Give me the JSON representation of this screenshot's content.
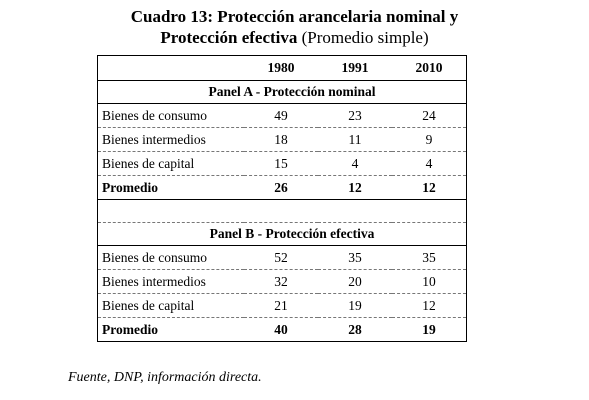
{
  "title": {
    "line1": "Cuadro 13: Protección arancelaria nominal y",
    "line2_bold": "Protección efectiva",
    "line2_rest": " (Promedio simple)"
  },
  "table": {
    "years": [
      "1980",
      "1991",
      "2010"
    ],
    "panel_a": {
      "title": "Panel A - Protección nominal",
      "rows": [
        {
          "label": "Bienes de consumo",
          "values": [
            "49",
            "23",
            "24"
          ]
        },
        {
          "label": "Bienes intermedios",
          "values": [
            "18",
            "11",
            "9"
          ]
        },
        {
          "label": "Bienes de capital",
          "values": [
            "15",
            "4",
            "4"
          ]
        }
      ],
      "average": {
        "label": "Promedio",
        "values": [
          "26",
          "12",
          "12"
        ]
      }
    },
    "panel_b": {
      "title": "Panel B - Protección efectiva",
      "rows": [
        {
          "label": "Bienes de consumo",
          "values": [
            "52",
            "35",
            "35"
          ]
        },
        {
          "label": "Bienes intermedios",
          "values": [
            "32",
            "20",
            "10"
          ]
        },
        {
          "label": "Bienes de capital",
          "values": [
            "21",
            "19",
            "12"
          ]
        }
      ],
      "average": {
        "label": "Promedio",
        "values": [
          "40",
          "28",
          "19"
        ]
      }
    }
  },
  "note": "Fuente, DNP, información directa."
}
